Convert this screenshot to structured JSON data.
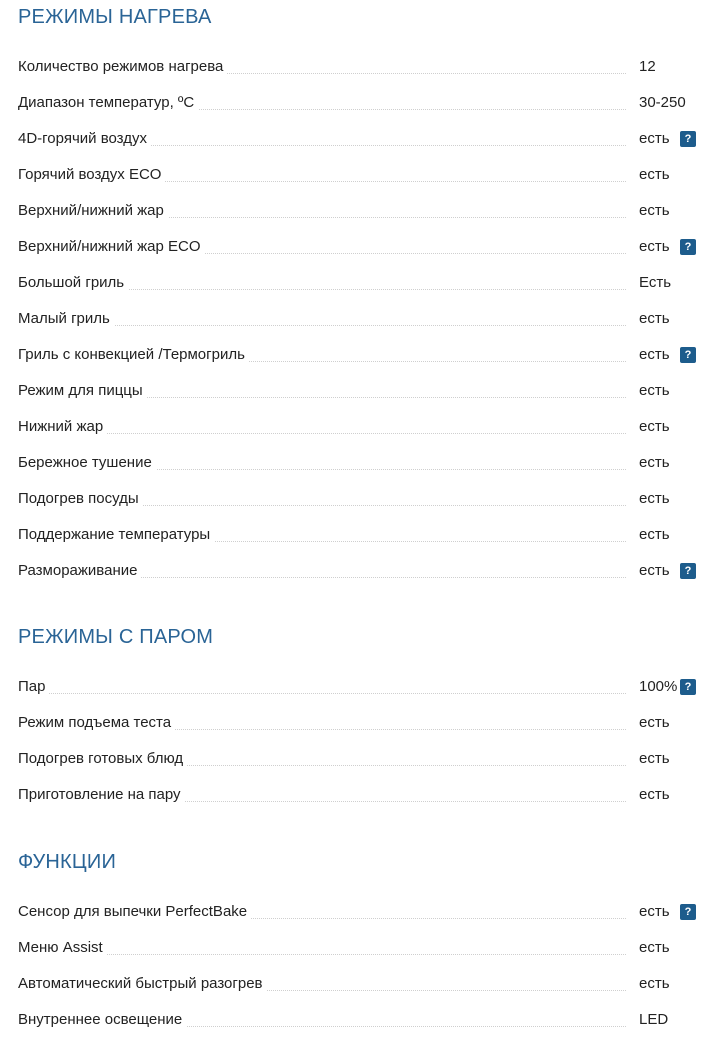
{
  "sections": [
    {
      "title": "РЕЖИМЫ НАГРЕВА",
      "rows": [
        {
          "label": "Количество режимов нагрева",
          "value": "12",
          "help": false
        },
        {
          "label": "Диапазон температур, ºC",
          "value": "30-250",
          "help": false
        },
        {
          "label": "4D-горячий воздух",
          "value": "есть",
          "help": true
        },
        {
          "label": "Горячий воздух ECO",
          "value": "есть",
          "help": false
        },
        {
          "label": "Верхний/нижний жар",
          "value": "есть",
          "help": false
        },
        {
          "label": "Верхний/нижний жар ECO",
          "value": "есть",
          "help": true
        },
        {
          "label": "Большой гриль",
          "value": "Есть",
          "help": false
        },
        {
          "label": "Малый гриль",
          "value": "есть",
          "help": false
        },
        {
          "label": "Гриль с конвекцией /Термогриль",
          "value": "есть",
          "help": true
        },
        {
          "label": "Режим для пиццы",
          "value": "есть",
          "help": false
        },
        {
          "label": "Нижний жар",
          "value": "есть",
          "help": false
        },
        {
          "label": "Бережное тушение",
          "value": "есть",
          "help": false
        },
        {
          "label": "Подогрев посуды",
          "value": "есть",
          "help": false
        },
        {
          "label": "Поддержание температуры",
          "value": "есть",
          "help": false
        },
        {
          "label": "Размораживание",
          "value": "есть",
          "help": true
        }
      ]
    },
    {
      "title": "РЕЖИМЫ С ПАРОМ",
      "rows": [
        {
          "label": "Пар",
          "value": "100%",
          "help": true
        },
        {
          "label": "Режим подъема теста",
          "value": "есть",
          "help": false
        },
        {
          "label": "Подогрев готовых блюд",
          "value": "есть",
          "help": false
        },
        {
          "label": "Приготовление на пару",
          "value": "есть",
          "help": false
        }
      ]
    },
    {
      "title": "ФУНКЦИИ",
      "rows": [
        {
          "label": "Сенсор для выпечки PerfectBake",
          "value": "есть",
          "help": true
        },
        {
          "label": "Меню Assist",
          "value": "есть",
          "help": false
        },
        {
          "label": "Автоматический быстрый разогрев",
          "value": "есть",
          "help": false
        },
        {
          "label": "Внутреннее освещение",
          "value": "LED",
          "help": false
        }
      ]
    }
  ],
  "help_icon": {
    "glyph": "?",
    "name": "help-icon",
    "color": "#1d5c8c"
  },
  "colors": {
    "section_title": "#2a6496",
    "text": "#222222",
    "leader_dots": "#cfcfcf"
  }
}
